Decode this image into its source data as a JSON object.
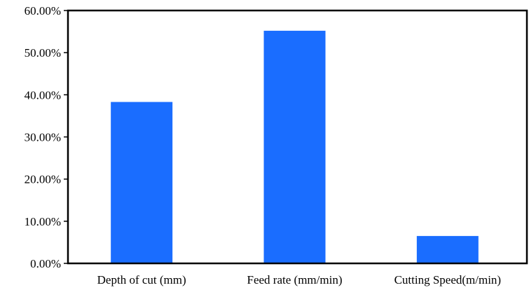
{
  "chart_data": {
    "type": "bar",
    "title": "",
    "xlabel": "",
    "ylabel": "",
    "categories": [
      "Depth of cut (mm)",
      "Feed rate (mm/min)",
      "Cutting Speed(m/min)"
    ],
    "values": [
      38.3,
      55.2,
      6.5
    ],
    "value_unit": "%",
    "ylim": [
      0,
      60
    ],
    "yticks": [
      0,
      10,
      20,
      30,
      40,
      50,
      60
    ],
    "ytick_labels": [
      "0.00%",
      "10.00%",
      "20.00%",
      "30.00%",
      "40.00%",
      "50.00%",
      "60.00%"
    ],
    "grid": false,
    "legend": "none",
    "bar_color": "#1a6dff"
  }
}
